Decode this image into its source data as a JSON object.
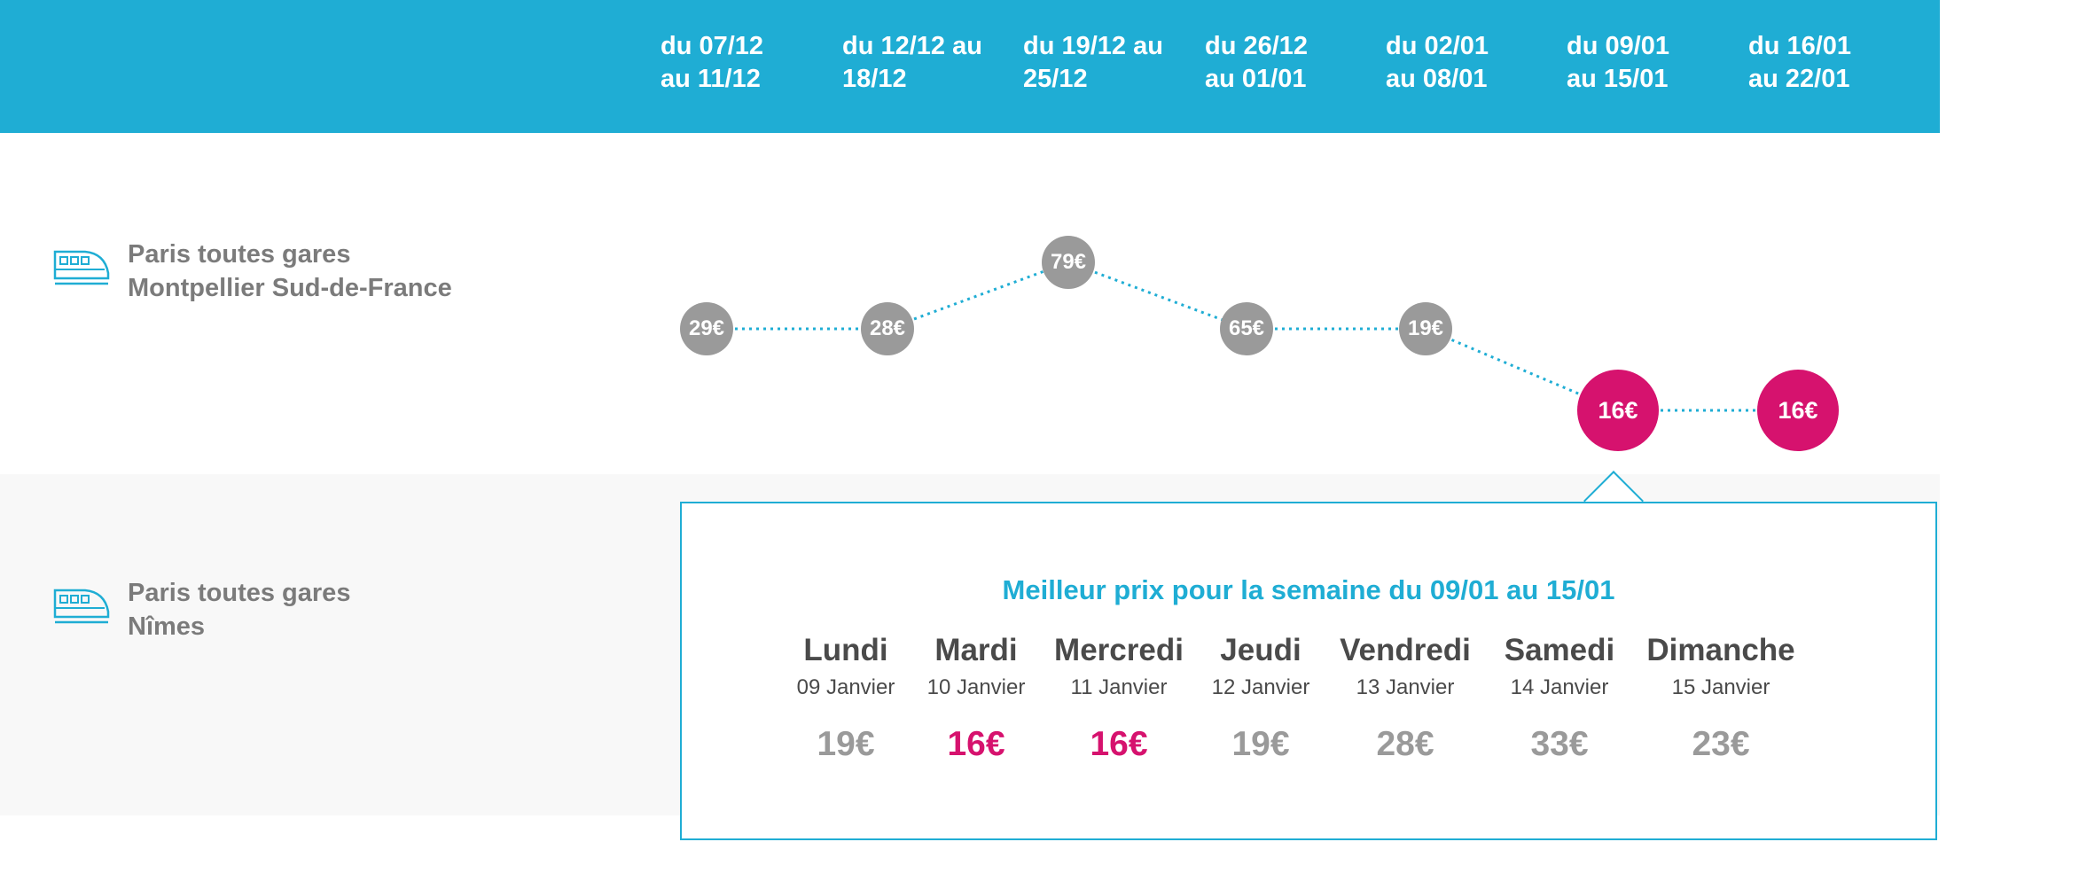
{
  "header": {
    "weeks": [
      {
        "line1": "du 07/12",
        "line2": "au 11/12"
      },
      {
        "line1": "du 12/12 au",
        "line2": "18/12"
      },
      {
        "line1": "du 19/12 au",
        "line2": "25/12"
      },
      {
        "line1": "du 26/12",
        "line2": "au 01/01"
      },
      {
        "line1": "du 02/01",
        "line2": "au 08/01"
      },
      {
        "line1": "du 09/01",
        "line2": "au 15/01"
      },
      {
        "line1": "du 16/01",
        "line2": "au 22/01"
      }
    ]
  },
  "routes": [
    {
      "origin": "Paris toutes gares",
      "destination": "Montpellier Sud-de-France",
      "icon": "train-icon"
    },
    {
      "origin": "Paris toutes gares",
      "destination": "Nîmes",
      "icon": "train-icon"
    }
  ],
  "price_curve": {
    "prices": [
      29,
      28,
      79,
      65,
      19,
      16,
      16
    ],
    "labels": [
      "29€",
      "28€",
      "79€",
      "65€",
      "19€",
      "16€",
      "16€"
    ],
    "highlighted": [
      false,
      false,
      false,
      false,
      false,
      true,
      true
    ]
  },
  "detail": {
    "title": "Meilleur prix pour la semaine du 09/01 au 15/01",
    "days": [
      {
        "name": "Lundi",
        "date": "09 Janvier",
        "price": "19€",
        "best": false
      },
      {
        "name": "Mardi",
        "date": "10 Janvier",
        "price": "16€",
        "best": true
      },
      {
        "name": "Mercredi",
        "date": "11 Janvier",
        "price": "16€",
        "best": true
      },
      {
        "name": "Jeudi",
        "date": "12 Janvier",
        "price": "19€",
        "best": false
      },
      {
        "name": "Vendredi",
        "date": "13 Janvier",
        "price": "28€",
        "best": false
      },
      {
        "name": "Samedi",
        "date": "14 Janvier",
        "price": "33€",
        "best": false
      },
      {
        "name": "Dimanche",
        "date": "15 Janvier",
        "price": "23€",
        "best": false
      }
    ]
  },
  "colors": {
    "accent": "#1fadd4",
    "best_price": "#d6126e",
    "regular_price": "#9a9a9a"
  }
}
